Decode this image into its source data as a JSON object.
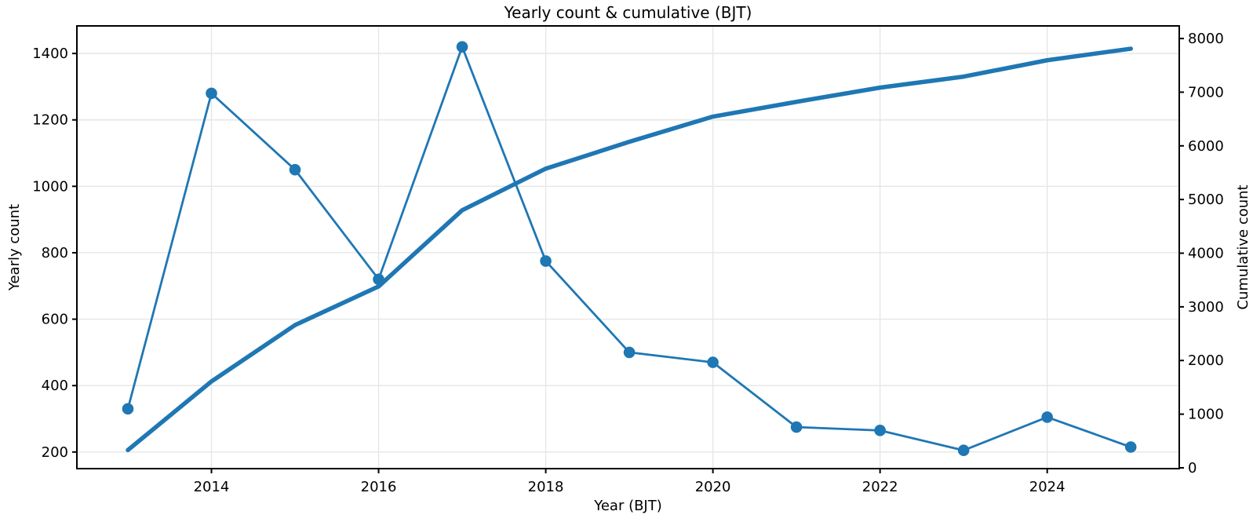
{
  "title": "Yearly count & cumulative (BJT)",
  "colors": {
    "line": "#1f77b4",
    "grid": "#e6e6e6",
    "spine": "#000000",
    "text": "#000000",
    "background": "#ffffff"
  },
  "chart_data": {
    "type": "line",
    "title": "Yearly count & cumulative (BJT)",
    "xlabel": "Year (BJT)",
    "ylabel_left": "Yearly count",
    "ylabel_right": "Cumulative count",
    "x": [
      2013,
      2014,
      2015,
      2016,
      2017,
      2018,
      2019,
      2020,
      2021,
      2022,
      2023,
      2024,
      2025
    ],
    "series": [
      {
        "name": "Yearly count",
        "axis": "left",
        "style": "line+markers",
        "values": [
          330,
          1280,
          1050,
          720,
          1420,
          775,
          500,
          470,
          275,
          265,
          205,
          305,
          215
        ]
      },
      {
        "name": "Cumulative count",
        "axis": "right",
        "style": "thick-line",
        "values": [
          330,
          1610,
          2660,
          3380,
          4800,
          5575,
          6075,
          6545,
          6820,
          7085,
          7290,
          7595,
          7810
        ]
      }
    ],
    "xticks": [
      2014,
      2016,
      2018,
      2020,
      2022,
      2024
    ],
    "yticks_left": [
      200,
      400,
      600,
      800,
      1000,
      1200,
      1400
    ],
    "yticks_right": [
      0,
      1000,
      2000,
      3000,
      4000,
      5000,
      6000,
      7000,
      8000
    ],
    "xlim": [
      2012.39,
      2025.58
    ],
    "ylim_left": [
      150,
      1483
    ],
    "ylim_right": [
      -15,
      8235
    ],
    "grid": true,
    "legend_position": "none"
  }
}
